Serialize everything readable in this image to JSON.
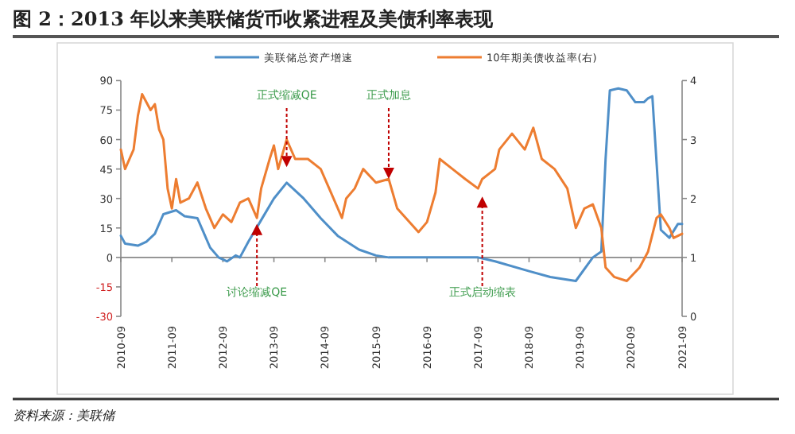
{
  "chart_data": {
    "type": "line",
    "title": "图 2：2013 年以来美联储货币收紧进程及美债利率表现",
    "x": [
      "2010-09",
      "2010-10",
      "2011-01",
      "2011-03",
      "2011-05",
      "2011-07",
      "2011-10",
      "2011-12",
      "2012-03",
      "2012-06",
      "2012-08",
      "2012-10",
      "2012-12",
      "2013-01",
      "2013-03",
      "2013-06",
      "2013-09",
      "2013-12",
      "2014-04",
      "2014-08",
      "2014-12",
      "2015-05",
      "2015-09",
      "2015-12",
      "2016-09",
      "2017-09",
      "2018-01",
      "2018-09",
      "2019-02",
      "2019-08",
      "2019-12",
      "2020-02",
      "2020-03",
      "2020-04",
      "2020-06",
      "2020-08",
      "2020-10",
      "2020-12",
      "2021-01",
      "2021-02",
      "2021-04",
      "2021-06",
      "2021-08",
      "2021-09"
    ],
    "series": [
      {
        "name": "美联储总资产增速",
        "color": "#4f8fc8",
        "values": [
          11,
          7,
          6,
          8,
          12,
          22,
          24,
          21,
          20,
          5,
          0,
          -2,
          1,
          0,
          8,
          19,
          30,
          38,
          30,
          20,
          11,
          4,
          1,
          0,
          0,
          0,
          -2,
          -7,
          -10,
          -12,
          0,
          3,
          50,
          85,
          86,
          85,
          79,
          79,
          81,
          82,
          14,
          10,
          17,
          17
        ]
      },
      {
        "name": "10年期美债收益率(右)",
        "color": "#ed7d31",
        "axis": "y2",
        "x": [
          "2010-09",
          "2010-10",
          "2010-12",
          "2011-01",
          "2011-02",
          "2011-04",
          "2011-05",
          "2011-06",
          "2011-07",
          "2011-08",
          "2011-09",
          "2011-10",
          "2011-11",
          "2012-01",
          "2012-03",
          "2012-05",
          "2012-07",
          "2012-09",
          "2012-11",
          "2013-01",
          "2013-03",
          "2013-05",
          "2013-06",
          "2013-08",
          "2013-09",
          "2013-10",
          "2013-12",
          "2014-02",
          "2014-05",
          "2014-08",
          "2014-10",
          "2015-01",
          "2015-02",
          "2015-04",
          "2015-06",
          "2015-09",
          "2015-12",
          "2016-02",
          "2016-07",
          "2016-09",
          "2016-11",
          "2016-12",
          "2017-03",
          "2017-06",
          "2017-09",
          "2017-10",
          "2018-01",
          "2018-02",
          "2018-05",
          "2018-08",
          "2018-10",
          "2018-12",
          "2019-03",
          "2019-06",
          "2019-08",
          "2019-10",
          "2019-12",
          "2020-02",
          "2020-03",
          "2020-05",
          "2020-08",
          "2020-11",
          "2021-01",
          "2021-03",
          "2021-04",
          "2021-06",
          "2021-07",
          "2021-09"
        ],
        "values": [
          2.83,
          2.5,
          2.83,
          3.4,
          3.77,
          3.5,
          3.6,
          3.17,
          3.0,
          2.17,
          1.83,
          2.33,
          1.93,
          2.0,
          2.27,
          1.83,
          1.5,
          1.73,
          1.6,
          1.93,
          2.0,
          1.67,
          2.17,
          2.67,
          2.9,
          2.5,
          3.0,
          2.67,
          2.67,
          2.5,
          2.17,
          1.67,
          2.0,
          2.17,
          2.5,
          2.27,
          2.33,
          1.83,
          1.43,
          1.6,
          2.1,
          2.67,
          2.5,
          2.33,
          2.17,
          2.33,
          2.5,
          2.83,
          3.1,
          2.83,
          3.2,
          2.67,
          2.5,
          2.17,
          1.5,
          1.83,
          1.9,
          1.5,
          0.83,
          0.67,
          0.6,
          0.83,
          1.1,
          1.67,
          1.73,
          1.5,
          1.33,
          1.4
        ]
      }
    ],
    "xlim": [
      "2010-09",
      "2021-09"
    ],
    "xticks": [
      "2010-09",
      "2011-09",
      "2012-09",
      "2013-09",
      "2014-09",
      "2015-09",
      "2016-09",
      "2017-09",
      "2018-09",
      "2019-09",
      "2020-09",
      "2021-09"
    ],
    "ylim": [
      -30,
      90
    ],
    "yticks": [
      -30,
      -15,
      0,
      15,
      30,
      45,
      60,
      75,
      90
    ],
    "y2lim": [
      0,
      4
    ],
    "y2ticks": [
      0,
      1,
      2,
      3,
      4
    ],
    "legend": "top",
    "annotations": [
      {
        "text": "正式缩减QE",
        "x": "2013-12",
        "y": 46
      },
      {
        "text": "正式加息",
        "x": "2015-12",
        "y": 40
      },
      {
        "text": "讨论缩减QE",
        "x": "2013-05",
        "y": 17
      },
      {
        "text": "正式启动缩表",
        "x": "2017-10",
        "y": 31
      },
      "资料来源：美联储"
    ]
  }
}
